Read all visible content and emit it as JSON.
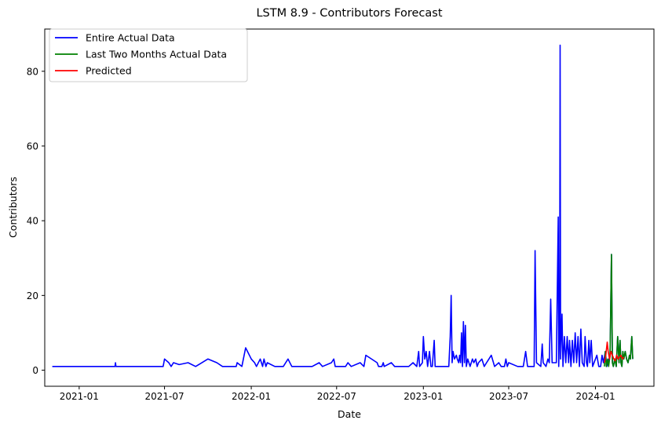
{
  "chart_data": {
    "type": "line",
    "title": "LSTM 8.9 - Contributors Forecast",
    "xlabel": "Date",
    "ylabel": "Contributors",
    "x_ticks": [
      "2021-01",
      "2021-07",
      "2022-01",
      "2022-07",
      "2023-01",
      "2023-07",
      "2024-01"
    ],
    "y_ticks": [
      0,
      20,
      40,
      60,
      80
    ],
    "xlim": [
      "2020-10-20",
      "2024-05-04"
    ],
    "ylim": [
      -4.3,
      91.3
    ],
    "grid": false,
    "legend_position": "top-left",
    "colors": {
      "actual": "#0000ff",
      "last_two_months": "#008000",
      "predicted": "#ff0000"
    },
    "series": [
      {
        "name": "Entire Actual Data",
        "key": "actual",
        "points": [
          [
            "2020-11-05",
            1
          ],
          [
            "2021-03-18",
            1
          ],
          [
            "2021-03-19",
            2
          ],
          [
            "2021-03-20",
            1
          ],
          [
            "2021-06-28",
            1
          ],
          [
            "2021-07-01",
            3
          ],
          [
            "2021-07-10",
            2
          ],
          [
            "2021-07-15",
            1
          ],
          [
            "2021-07-20",
            2
          ],
          [
            "2021-08-01",
            1.5
          ],
          [
            "2021-08-20",
            2
          ],
          [
            "2021-09-05",
            1
          ],
          [
            "2021-10-01",
            3
          ],
          [
            "2021-10-20",
            2
          ],
          [
            "2021-11-01",
            1
          ],
          [
            "2021-11-30",
            1
          ],
          [
            "2021-12-02",
            2
          ],
          [
            "2021-12-12",
            1
          ],
          [
            "2021-12-20",
            6
          ],
          [
            "2022-01-01",
            3
          ],
          [
            "2022-01-08",
            2
          ],
          [
            "2022-01-12",
            1
          ],
          [
            "2022-01-20",
            3
          ],
          [
            "2022-01-25",
            1
          ],
          [
            "2022-01-28",
            3
          ],
          [
            "2022-02-01",
            1
          ],
          [
            "2022-02-04",
            2
          ],
          [
            "2022-02-20",
            1
          ],
          [
            "2022-03-01",
            1
          ],
          [
            "2022-03-10",
            1
          ],
          [
            "2022-03-15",
            2
          ],
          [
            "2022-03-20",
            3
          ],
          [
            "2022-03-28",
            1
          ],
          [
            "2022-05-10",
            1
          ],
          [
            "2022-05-25",
            2
          ],
          [
            "2022-06-01",
            1
          ],
          [
            "2022-06-20",
            2
          ],
          [
            "2022-06-25",
            3
          ],
          [
            "2022-06-28",
            1
          ],
          [
            "2022-07-20",
            1
          ],
          [
            "2022-07-25",
            2
          ],
          [
            "2022-08-01",
            1
          ],
          [
            "2022-08-20",
            2
          ],
          [
            "2022-08-28",
            1
          ],
          [
            "2022-09-01",
            4
          ],
          [
            "2022-09-25",
            2
          ],
          [
            "2022-09-28",
            1
          ],
          [
            "2022-10-05",
            1
          ],
          [
            "2022-10-08",
            2
          ],
          [
            "2022-10-10",
            1
          ],
          [
            "2022-10-25",
            2
          ],
          [
            "2022-11-01",
            1
          ],
          [
            "2022-12-01",
            1
          ],
          [
            "2022-12-10",
            2
          ],
          [
            "2022-12-18",
            1
          ],
          [
            "2022-12-22",
            5
          ],
          [
            "2022-12-24",
            1
          ],
          [
            "2022-12-30",
            2
          ],
          [
            "2023-01-01",
            9
          ],
          [
            "2023-01-04",
            3
          ],
          [
            "2023-01-07",
            5
          ],
          [
            "2023-01-10",
            1
          ],
          [
            "2023-01-14",
            5
          ],
          [
            "2023-01-17",
            1
          ],
          [
            "2023-01-20",
            1
          ],
          [
            "2023-01-24",
            8
          ],
          [
            "2023-01-26",
            1
          ],
          [
            "2023-02-24",
            1
          ],
          [
            "2023-02-27",
            9
          ],
          [
            "2023-03-01",
            20
          ],
          [
            "2023-03-03",
            2
          ],
          [
            "2023-03-05",
            5
          ],
          [
            "2023-03-08",
            3
          ],
          [
            "2023-03-12",
            4
          ],
          [
            "2023-03-14",
            3
          ],
          [
            "2023-03-17",
            2
          ],
          [
            "2023-03-19",
            4
          ],
          [
            "2023-03-21",
            2
          ],
          [
            "2023-03-23",
            10
          ],
          [
            "2023-03-25",
            1
          ],
          [
            "2023-03-27",
            13
          ],
          [
            "2023-03-29",
            2
          ],
          [
            "2023-03-31",
            12
          ],
          [
            "2023-04-02",
            1
          ],
          [
            "2023-04-05",
            3
          ],
          [
            "2023-04-10",
            1
          ],
          [
            "2023-04-15",
            3
          ],
          [
            "2023-04-18",
            2
          ],
          [
            "2023-04-22",
            3
          ],
          [
            "2023-04-25",
            1
          ],
          [
            "2023-04-28",
            2
          ],
          [
            "2023-05-05",
            3
          ],
          [
            "2023-05-10",
            1
          ],
          [
            "2023-05-15",
            2
          ],
          [
            "2023-05-20",
            3
          ],
          [
            "2023-05-25",
            4
          ],
          [
            "2023-06-01",
            1
          ],
          [
            "2023-06-10",
            2
          ],
          [
            "2023-06-15",
            1
          ],
          [
            "2023-06-22",
            1
          ],
          [
            "2023-06-25",
            3
          ],
          [
            "2023-06-28",
            1
          ],
          [
            "2023-07-01",
            2
          ],
          [
            "2023-07-20",
            1
          ],
          [
            "2023-08-01",
            1
          ],
          [
            "2023-08-06",
            5
          ],
          [
            "2023-08-10",
            1
          ],
          [
            "2023-08-24",
            1
          ],
          [
            "2023-08-26",
            32
          ],
          [
            "2023-08-29",
            2
          ],
          [
            "2023-09-07",
            1
          ],
          [
            "2023-09-10",
            7
          ],
          [
            "2023-09-12",
            2
          ],
          [
            "2023-09-18",
            1
          ],
          [
            "2023-09-22",
            3
          ],
          [
            "2023-09-25",
            2
          ],
          [
            "2023-09-28",
            19
          ],
          [
            "2023-10-01",
            2
          ],
          [
            "2023-10-10",
            2
          ],
          [
            "2023-10-14",
            41
          ],
          [
            "2023-10-15",
            1
          ],
          [
            "2023-10-17",
            12
          ],
          [
            "2023-10-18",
            87
          ],
          [
            "2023-10-19",
            3
          ],
          [
            "2023-10-22",
            15
          ],
          [
            "2023-10-24",
            1
          ],
          [
            "2023-10-27",
            9
          ],
          [
            "2023-10-30",
            2
          ],
          [
            "2023-11-02",
            9
          ],
          [
            "2023-11-05",
            2
          ],
          [
            "2023-11-07",
            8
          ],
          [
            "2023-11-10",
            1
          ],
          [
            "2023-11-13",
            8
          ],
          [
            "2023-11-16",
            2
          ],
          [
            "2023-11-19",
            10
          ],
          [
            "2023-11-22",
            2
          ],
          [
            "2023-11-25",
            9
          ],
          [
            "2023-11-28",
            1
          ],
          [
            "2023-12-01",
            11
          ],
          [
            "2023-12-04",
            2
          ],
          [
            "2023-12-08",
            1
          ],
          [
            "2023-12-10",
            9
          ],
          [
            "2023-12-13",
            2
          ],
          [
            "2023-12-15",
            1
          ],
          [
            "2023-12-18",
            8
          ],
          [
            "2023-12-20",
            2
          ],
          [
            "2023-12-23",
            8
          ],
          [
            "2023-12-26",
            1
          ],
          [
            "2024-01-01",
            3
          ],
          [
            "2024-01-04",
            4
          ],
          [
            "2024-01-08",
            1
          ],
          [
            "2024-01-12",
            1
          ],
          [
            "2024-01-15",
            4
          ],
          [
            "2024-01-18",
            2
          ],
          [
            "2024-01-22",
            5
          ],
          [
            "2024-01-25",
            1
          ],
          [
            "2024-01-28",
            2
          ],
          [
            "2024-02-01",
            4
          ],
          [
            "2024-02-04",
            31
          ],
          [
            "2024-02-06",
            2
          ],
          [
            "2024-02-08",
            1
          ],
          [
            "2024-02-11",
            3
          ],
          [
            "2024-02-14",
            1
          ],
          [
            "2024-02-17",
            9
          ],
          [
            "2024-02-20",
            2
          ],
          [
            "2024-02-22",
            8
          ],
          [
            "2024-02-24",
            2
          ],
          [
            "2024-02-26",
            1
          ],
          [
            "2024-02-28",
            5
          ],
          [
            "2024-03-01",
            3
          ],
          [
            "2024-03-04",
            5
          ],
          [
            "2024-03-07",
            3
          ],
          [
            "2024-03-10",
            2
          ],
          [
            "2024-03-13",
            4
          ],
          [
            "2024-03-15",
            3
          ],
          [
            "2024-03-18",
            9
          ],
          [
            "2024-03-20",
            3
          ]
        ]
      },
      {
        "name": "Last Two Months Actual Data",
        "key": "last_two_months",
        "points": [
          [
            "2024-01-20",
            1
          ],
          [
            "2024-01-22",
            5
          ],
          [
            "2024-01-24",
            1
          ],
          [
            "2024-01-27",
            3
          ],
          [
            "2024-01-29",
            1
          ],
          [
            "2024-02-01",
            4
          ],
          [
            "2024-02-04",
            31
          ],
          [
            "2024-02-06",
            2
          ],
          [
            "2024-02-08",
            1
          ],
          [
            "2024-02-11",
            3
          ],
          [
            "2024-02-14",
            1
          ],
          [
            "2024-02-17",
            9
          ],
          [
            "2024-02-20",
            2
          ],
          [
            "2024-02-22",
            8
          ],
          [
            "2024-02-24",
            2
          ],
          [
            "2024-02-26",
            1
          ],
          [
            "2024-02-28",
            5
          ],
          [
            "2024-03-01",
            3
          ],
          [
            "2024-03-04",
            5
          ],
          [
            "2024-03-07",
            3
          ],
          [
            "2024-03-10",
            2
          ],
          [
            "2024-03-13",
            4
          ],
          [
            "2024-03-15",
            3
          ],
          [
            "2024-03-18",
            9
          ],
          [
            "2024-03-20",
            3
          ]
        ]
      },
      {
        "name": "Predicted",
        "key": "predicted",
        "points": [
          [
            "2024-01-20",
            2
          ],
          [
            "2024-01-23",
            4
          ],
          [
            "2024-01-26",
            7.5
          ],
          [
            "2024-01-28",
            5
          ],
          [
            "2024-01-31",
            3
          ],
          [
            "2024-02-03",
            5
          ],
          [
            "2024-02-06",
            4
          ],
          [
            "2024-02-09",
            3
          ],
          [
            "2024-02-12",
            2.5
          ],
          [
            "2024-02-15",
            4
          ],
          [
            "2024-02-18",
            3
          ],
          [
            "2024-02-21",
            3.5
          ],
          [
            "2024-02-24",
            4
          ],
          [
            "2024-02-27",
            3
          ],
          [
            "2024-03-01",
            3.5
          ]
        ]
      }
    ]
  }
}
